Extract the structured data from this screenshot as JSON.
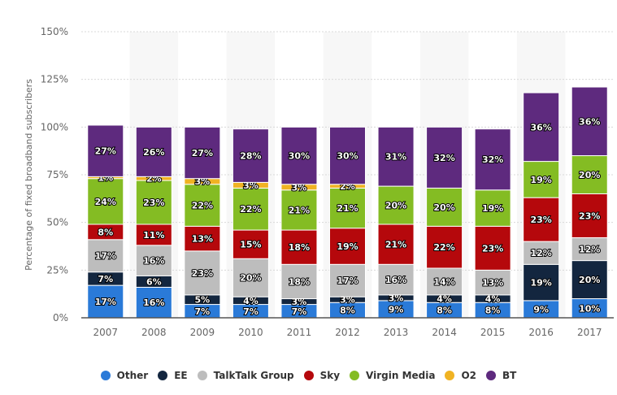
{
  "chart_data": {
    "type": "bar",
    "stacked": true,
    "title": "",
    "xlabel": "",
    "ylabel": "Percentage of fixed broadband subscribers",
    "ylim": [
      0,
      150
    ],
    "yticks": [
      "0%",
      "25%",
      "50%",
      "75%",
      "100%",
      "125%",
      "150%"
    ],
    "ytick_values": [
      0,
      25,
      50,
      75,
      100,
      125,
      150
    ],
    "grid": true,
    "legend_position": "bottom",
    "categories": [
      "2007",
      "2008",
      "2009",
      "2010",
      "2011",
      "2012",
      "2013",
      "2014",
      "2015",
      "2016",
      "2017"
    ],
    "series": [
      {
        "name": "Other",
        "color": "#2a7ad8",
        "values": [
          17,
          16,
          7,
          7,
          7,
          8,
          9,
          8,
          8,
          9,
          10
        ]
      },
      {
        "name": "EE",
        "color": "#13263f",
        "values": [
          7,
          6,
          5,
          4,
          3,
          3,
          3,
          4,
          4,
          19,
          20
        ]
      },
      {
        "name": "TalkTalk Group",
        "color": "#bdbdbd",
        "values": [
          17,
          16,
          23,
          20,
          18,
          17,
          16,
          14,
          13,
          12,
          12
        ]
      },
      {
        "name": "Sky",
        "color": "#b5080c",
        "values": [
          8,
          11,
          13,
          15,
          18,
          19,
          21,
          22,
          23,
          23,
          23
        ]
      },
      {
        "name": "Virgin Media",
        "color": "#84bc23",
        "values": [
          24,
          23,
          22,
          22,
          21,
          21,
          20,
          20,
          19,
          19,
          20
        ]
      },
      {
        "name": "O2",
        "color": "#f0b323",
        "values": [
          1,
          2,
          3,
          3,
          3,
          2,
          0,
          0,
          0,
          0,
          0
        ]
      },
      {
        "name": "BT",
        "color": "#5e2a7e",
        "values": [
          27,
          26,
          27,
          28,
          30,
          30,
          31,
          32,
          32,
          36,
          36
        ]
      }
    ]
  }
}
